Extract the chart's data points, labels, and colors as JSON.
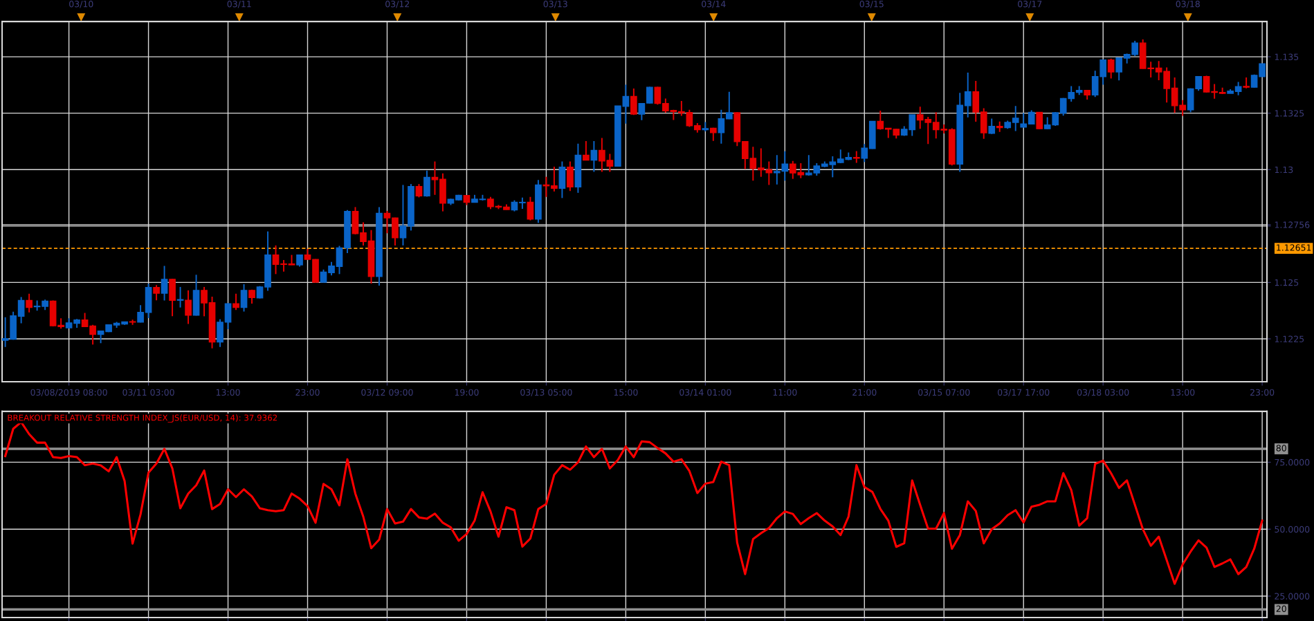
{
  "chart_data": [
    {
      "type": "candlestick",
      "categories": [
        null,
        null,
        null,
        null,
        null,
        null,
        null,
        null,
        "03/08/2019 08:00",
        null,
        null,
        null,
        null,
        null,
        null,
        null,
        null,
        null,
        "03/11 03:00",
        null,
        null,
        null,
        null,
        null,
        null,
        null,
        null,
        null,
        "13:00",
        null,
        null,
        null,
        null,
        null,
        null,
        null,
        null,
        null,
        "23:00",
        null,
        null,
        null,
        null,
        null,
        null,
        null,
        null,
        null,
        "03/12 09:00",
        null,
        null,
        null,
        null,
        null,
        null,
        null,
        null,
        null,
        "19:00",
        null,
        null,
        null,
        null,
        null,
        null,
        null,
        null,
        null,
        "03/13 05:00",
        null,
        null,
        null,
        null,
        null,
        null,
        null,
        null,
        null,
        "15:00",
        null,
        null,
        null,
        null,
        null,
        null,
        null,
        null,
        null,
        "03/14 01:00",
        null,
        null,
        null,
        null,
        null,
        null,
        null,
        null,
        null,
        "11:00",
        null,
        null,
        null,
        null,
        null,
        null,
        null,
        null,
        null,
        "21:00",
        null,
        null,
        null,
        null,
        null,
        null,
        null,
        null,
        null,
        "03/15 07:00",
        null,
        null,
        null,
        null,
        null,
        null,
        null,
        null,
        null,
        "03/17 17:00",
        null,
        null,
        null,
        null,
        null,
        null,
        null,
        null,
        null,
        "03/18 03:00",
        null,
        null,
        null,
        null,
        null,
        null,
        null,
        null,
        null,
        "13:00",
        null,
        null,
        null,
        null,
        null,
        null,
        null,
        null,
        null,
        "23:00"
      ],
      "ohlc": [
        [
          1.12244,
          1.12346,
          1.12214,
          1.12251
        ],
        [
          1.12248,
          1.1237,
          1.12246,
          1.12352
        ],
        [
          1.1235,
          1.12435,
          1.12319,
          1.1242
        ],
        [
          1.1242,
          1.1245,
          1.12367,
          1.12389
        ],
        [
          1.12392,
          1.1242,
          1.12375,
          1.12395
        ],
        [
          1.12394,
          1.12424,
          1.12378,
          1.12417
        ],
        [
          1.12417,
          1.1242,
          1.12305,
          1.12308
        ],
        [
          1.1231,
          1.12341,
          1.12295,
          1.12304
        ],
        [
          1.12299,
          1.12341,
          1.12296,
          1.12321
        ],
        [
          1.12319,
          1.12338,
          1.12299,
          1.12334
        ],
        [
          1.12334,
          1.12365,
          1.12303,
          1.12304
        ],
        [
          1.12307,
          1.12312,
          1.12225,
          1.1227
        ],
        [
          1.1227,
          1.12287,
          1.12231,
          1.12285
        ],
        [
          1.12282,
          1.12314,
          1.1228,
          1.12312
        ],
        [
          1.12311,
          1.12325,
          1.12299,
          1.12319
        ],
        [
          1.12316,
          1.12326,
          1.12312,
          1.12325
        ],
        [
          1.12326,
          1.12335,
          1.12312,
          1.12324
        ],
        [
          1.12324,
          1.12399,
          1.12323,
          1.12367
        ],
        [
          1.12367,
          1.12494,
          1.12342,
          1.12478
        ],
        [
          1.12478,
          1.12488,
          1.12421,
          1.12452
        ],
        [
          1.12452,
          1.12573,
          1.1242,
          1.12514
        ],
        [
          1.12514,
          1.12516,
          1.1235,
          1.12421
        ],
        [
          1.12421,
          1.1248,
          1.12389,
          1.12424
        ],
        [
          1.12421,
          1.12465,
          1.12316,
          1.12355
        ],
        [
          1.12355,
          1.12534,
          1.12353,
          1.12465
        ],
        [
          1.12465,
          1.1248,
          1.1235,
          1.12409
        ],
        [
          1.1241,
          1.12437,
          1.12208,
          1.12236
        ],
        [
          1.12236,
          1.12337,
          1.12214,
          1.12324
        ],
        [
          1.12324,
          1.12408,
          1.12293,
          1.12406
        ],
        [
          1.12406,
          1.1245,
          1.12378,
          1.12389
        ],
        [
          1.12389,
          1.12492,
          1.12371,
          1.12465
        ],
        [
          1.12465,
          1.12468,
          1.12406,
          1.12433
        ],
        [
          1.12431,
          1.12484,
          1.12429,
          1.1248
        ],
        [
          1.1248,
          1.12726,
          1.12463,
          1.12622
        ],
        [
          1.12622,
          1.12664,
          1.12537,
          1.1258
        ],
        [
          1.12582,
          1.12599,
          1.12548,
          1.1258
        ],
        [
          1.12582,
          1.12622,
          1.12577,
          1.12578
        ],
        [
          1.12578,
          1.12624,
          1.1257,
          1.12622
        ],
        [
          1.12622,
          1.12648,
          1.12601,
          1.12602
        ],
        [
          1.12602,
          1.12603,
          1.125,
          1.12501
        ],
        [
          1.12501,
          1.12557,
          1.125,
          1.12546
        ],
        [
          1.12543,
          1.12591,
          1.12531,
          1.12573
        ],
        [
          1.12571,
          1.12662,
          1.12537,
          1.12653
        ],
        [
          1.12653,
          1.12821,
          1.1263,
          1.12815
        ],
        [
          1.12815,
          1.12834,
          1.12713,
          1.12716
        ],
        [
          1.1272,
          1.12766,
          1.12664,
          1.12681
        ],
        [
          1.12684,
          1.12732,
          1.12495,
          1.12526
        ],
        [
          1.12526,
          1.12834,
          1.12486,
          1.12806
        ],
        [
          1.12806,
          1.12817,
          1.12718,
          1.12786
        ],
        [
          1.12786,
          1.12787,
          1.12664,
          1.12698
        ],
        [
          1.12698,
          1.12932,
          1.12664,
          1.1275
        ],
        [
          1.1275,
          1.12936,
          1.1273,
          1.12925
        ],
        [
          1.12925,
          1.12936,
          1.12877,
          1.12883
        ],
        [
          1.12883,
          1.12995,
          1.1288,
          1.12966
        ],
        [
          1.12966,
          1.13036,
          1.12888,
          1.12955
        ],
        [
          1.12957,
          1.12983,
          1.12815,
          1.12851
        ],
        [
          1.12851,
          1.12871,
          1.12843,
          1.12868
        ],
        [
          1.12866,
          1.12888,
          1.12863,
          1.12886
        ],
        [
          1.12885,
          1.12886,
          1.12843,
          1.12855
        ],
        [
          1.12855,
          1.12888,
          1.12854,
          1.12869
        ],
        [
          1.12867,
          1.12888,
          1.12863,
          1.12869
        ],
        [
          1.12869,
          1.12879,
          1.12825,
          1.12836
        ],
        [
          1.12837,
          1.12843,
          1.12825,
          1.12834
        ],
        [
          1.12834,
          1.12846,
          1.12822,
          1.12823
        ],
        [
          1.12821,
          1.12864,
          1.12815,
          1.12855
        ],
        [
          1.12853,
          1.12876,
          1.12826,
          1.12855
        ],
        [
          1.12855,
          1.12879,
          1.12775,
          1.12781
        ],
        [
          1.12781,
          1.12954,
          1.12764,
          1.12932
        ],
        [
          1.12932,
          1.12968,
          1.12879,
          1.12928
        ],
        [
          1.12928,
          1.13013,
          1.12903,
          1.12917
        ],
        [
          1.12917,
          1.13036,
          1.12874,
          1.13011
        ],
        [
          1.13011,
          1.13036,
          1.12905,
          1.12923
        ],
        [
          1.12923,
          1.13115,
          1.12897,
          1.13064
        ],
        [
          1.13064,
          1.13126,
          1.13041,
          1.13042
        ],
        [
          1.13042,
          1.13126,
          1.1299,
          1.13085
        ],
        [
          1.13085,
          1.1314,
          1.1299,
          1.13038
        ],
        [
          1.13041,
          1.1307,
          1.1299,
          1.13015
        ],
        [
          1.13015,
          1.13282,
          1.13013,
          1.13282
        ],
        [
          1.1328,
          1.13376,
          1.13204,
          1.13324
        ],
        [
          1.13324,
          1.13359,
          1.13242,
          1.13246
        ],
        [
          1.13246,
          1.13295,
          1.13219,
          1.13293
        ],
        [
          1.13295,
          1.13367,
          1.13293,
          1.13365
        ],
        [
          1.13365,
          1.13367,
          1.13288,
          1.13293
        ],
        [
          1.13293,
          1.13315,
          1.13252,
          1.1326
        ],
        [
          1.13262,
          1.13265,
          1.1322,
          1.13257
        ],
        [
          1.13257,
          1.13304,
          1.13238,
          1.13252
        ],
        [
          1.13253,
          1.13265,
          1.13189,
          1.13194
        ],
        [
          1.13195,
          1.13206,
          1.13164,
          1.13177
        ],
        [
          1.13177,
          1.13211,
          1.13169,
          1.13182
        ],
        [
          1.13183,
          1.13185,
          1.13127,
          1.13164
        ],
        [
          1.13164,
          1.13265,
          1.13115,
          1.13225
        ],
        [
          1.13225,
          1.13345,
          1.13224,
          1.13252
        ],
        [
          1.13252,
          1.13254,
          1.13104,
          1.13124
        ],
        [
          1.13124,
          1.13126,
          1.13002,
          1.13049
        ],
        [
          1.1305,
          1.13101,
          1.12951,
          1.13005
        ],
        [
          1.13007,
          1.13094,
          1.12968,
          1.12999
        ],
        [
          1.12999,
          1.13036,
          1.12932,
          1.12986
        ],
        [
          1.12986,
          1.13064,
          1.12934,
          1.12992
        ],
        [
          1.12993,
          1.13081,
          1.12951,
          1.13025
        ],
        [
          1.13025,
          1.13038,
          1.12959,
          1.12985
        ],
        [
          1.12987,
          1.13028,
          1.12962,
          1.12977
        ],
        [
          1.12977,
          1.13064,
          1.12973,
          1.12985
        ],
        [
          1.12985,
          1.13028,
          1.12973,
          1.13016
        ],
        [
          1.13014,
          1.13036,
          1.13011,
          1.13025
        ],
        [
          1.13022,
          1.13059,
          1.12966,
          1.13034
        ],
        [
          1.13031,
          1.13089,
          1.13028,
          1.13047
        ],
        [
          1.13045,
          1.13076,
          1.13042,
          1.13054
        ],
        [
          1.13054,
          1.13082,
          1.1303,
          1.1305
        ],
        [
          1.1305,
          1.13113,
          1.13034,
          1.13095
        ],
        [
          1.13093,
          1.13214,
          1.13092,
          1.13214
        ],
        [
          1.13214,
          1.13261,
          1.13177,
          1.13181
        ],
        [
          1.13183,
          1.13183,
          1.1314,
          1.13179
        ],
        [
          1.13179,
          1.1318,
          1.13138,
          1.13153
        ],
        [
          1.13153,
          1.13192,
          1.13149,
          1.13179
        ],
        [
          1.13177,
          1.13243,
          1.13149,
          1.13243
        ],
        [
          1.13243,
          1.13279,
          1.13181,
          1.1322
        ],
        [
          1.13222,
          1.13234,
          1.13113,
          1.13209
        ],
        [
          1.13209,
          1.13254,
          1.13138,
          1.13177
        ],
        [
          1.13179,
          1.132,
          1.1316,
          1.13175
        ],
        [
          1.13177,
          1.13183,
          1.13018,
          1.13024
        ],
        [
          1.13024,
          1.1334,
          1.1299,
          1.13285
        ],
        [
          1.13283,
          1.1343,
          1.13231,
          1.13345
        ],
        [
          1.13345,
          1.13393,
          1.13212,
          1.13255
        ],
        [
          1.13255,
          1.13272,
          1.13136,
          1.13163
        ],
        [
          1.13161,
          1.13226,
          1.13158,
          1.13192
        ],
        [
          1.13192,
          1.13213,
          1.13167,
          1.13186
        ],
        [
          1.13186,
          1.13217,
          1.13181,
          1.13209
        ],
        [
          1.13209,
          1.13282,
          1.13171,
          1.13228
        ],
        [
          1.13188,
          1.13251,
          1.13186,
          1.13202
        ],
        [
          1.13202,
          1.13263,
          1.132,
          1.13254
        ],
        [
          1.13254,
          1.13255,
          1.1318,
          1.13181
        ],
        [
          1.13181,
          1.13232,
          1.1318,
          1.13198
        ],
        [
          1.13198,
          1.13255,
          1.13194,
          1.13252
        ],
        [
          1.1325,
          1.13317,
          1.13239,
          1.13315
        ],
        [
          1.13315,
          1.1337,
          1.13301,
          1.13342
        ],
        [
          1.13342,
          1.1337,
          1.13331,
          1.13351
        ],
        [
          1.13351,
          1.13353,
          1.1331,
          1.13331
        ],
        [
          1.13331,
          1.13438,
          1.13322,
          1.13412
        ],
        [
          1.13412,
          1.13487,
          1.13376,
          1.13486
        ],
        [
          1.13486,
          1.13492,
          1.13404,
          1.13433
        ],
        [
          1.13433,
          1.13496,
          1.13395,
          1.13495
        ],
        [
          1.13494,
          1.13514,
          1.1347,
          1.1351
        ],
        [
          1.1351,
          1.13571,
          1.13503,
          1.13561
        ],
        [
          1.13561,
          1.13577,
          1.13447,
          1.13448
        ],
        [
          1.1345,
          1.13478,
          1.13408,
          1.13447
        ],
        [
          1.1345,
          1.13481,
          1.13396,
          1.13433
        ],
        [
          1.13435,
          1.13453,
          1.13297,
          1.13359
        ],
        [
          1.13361,
          1.13408,
          1.13251,
          1.13283
        ],
        [
          1.13285,
          1.13308,
          1.13238,
          1.13265
        ],
        [
          1.13265,
          1.1336,
          1.13254,
          1.13358
        ],
        [
          1.13358,
          1.13413,
          1.13349,
          1.13412
        ],
        [
          1.13412,
          1.13416,
          1.13342,
          1.13344
        ],
        [
          1.13346,
          1.13379,
          1.13314,
          1.13342
        ],
        [
          1.13342,
          1.13363,
          1.13335,
          1.13338
        ],
        [
          1.13338,
          1.13356,
          1.13338,
          1.13348
        ],
        [
          1.13346,
          1.13388,
          1.13329,
          1.13368
        ],
        [
          1.13369,
          1.13408,
          1.1336,
          1.13365
        ],
        [
          1.13365,
          1.13421,
          1.13364,
          1.13418
        ],
        [
          1.13412,
          1.13469,
          1.13412,
          1.13469
        ]
      ],
      "colors": [
        "#0a64c8",
        "#0a64c8",
        "#0a64c8",
        "#e60000",
        "#0a64c8",
        "#0a64c8",
        "#e60000",
        "#e60000",
        "#0a64c8",
        "#0a64c8",
        "#e60000",
        "#e60000",
        "#0a64c8",
        "#0a64c8",
        "#0a64c8",
        "#0a64c8",
        "#e60000",
        "#0a64c8",
        "#0a64c8",
        "#e60000",
        "#0a64c8",
        "#e60000",
        "#0a64c8",
        "#e60000",
        "#0a64c8",
        "#e60000",
        "#e60000",
        "#0a64c8",
        "#0a64c8",
        "#e60000",
        "#0a64c8",
        "#e60000",
        "#0a64c8",
        "#0a64c8",
        "#e60000",
        "#e60000",
        "#e60000",
        "#0a64c8",
        "#e60000",
        "#e60000",
        "#0a64c8",
        "#0a64c8",
        "#0a64c8",
        "#0a64c8",
        "#e60000",
        "#e60000",
        "#e60000",
        "#0a64c8",
        "#e60000",
        "#e60000",
        "#0a64c8",
        "#0a64c8",
        "#e60000",
        "#0a64c8",
        "#e60000",
        "#e60000",
        "#0a64c8",
        "#0a64c8",
        "#e60000",
        "#0a64c8",
        "#0a64c8",
        "#e60000",
        "#e60000",
        "#e60000",
        "#0a64c8",
        "#0a64c8",
        "#e60000",
        "#0a64c8",
        "#e60000",
        "#e60000",
        "#0a64c8",
        "#e60000",
        "#0a64c8",
        "#e60000",
        "#0a64c8",
        "#e60000",
        "#e60000",
        "#0a64c8",
        "#0a64c8",
        "#e60000",
        "#0a64c8",
        "#0a64c8",
        "#e60000",
        "#e60000",
        "#e60000",
        "#e60000",
        "#e60000",
        "#e60000",
        "#0a64c8",
        "#e60000",
        "#0a64c8",
        "#0a64c8",
        "#e60000",
        "#e60000",
        "#e60000",
        "#e60000",
        "#e60000",
        "#0a64c8",
        "#0a64c8",
        "#e60000",
        "#e60000",
        "#0a64c8",
        "#0a64c8",
        "#0a64c8",
        "#0a64c8",
        "#0a64c8",
        "#0a64c8",
        "#e60000",
        "#0a64c8",
        "#0a64c8",
        "#e60000",
        "#e60000",
        "#e60000",
        "#0a64c8",
        "#0a64c8",
        "#e60000",
        "#e60000",
        "#e60000",
        "#e60000",
        "#e60000",
        "#0a64c8",
        "#0a64c8",
        "#e60000",
        "#e60000",
        "#0a64c8",
        "#e60000",
        "#0a64c8",
        "#0a64c8",
        "#0a64c8",
        "#0a64c8",
        "#e60000",
        "#0a64c8",
        "#0a64c8",
        "#0a64c8",
        "#0a64c8",
        "#0a64c8",
        "#e60000",
        "#0a64c8",
        "#0a64c8",
        "#e60000",
        "#0a64c8",
        "#0a64c8",
        "#0a64c8",
        "#e60000",
        "#e60000",
        "#e60000",
        "#e60000",
        "#e60000",
        "#e60000",
        "#0a64c8",
        "#0a64c8",
        "#e60000",
        "#e60000",
        "#e60000",
        "#0a64c8",
        "#0a64c8",
        "#e60000",
        "#0a64c8",
        "#0a64c8"
      ],
      "ylim": [
        1.1206,
        1.13656
      ],
      "yticks": [
        1.1225,
        1.125,
        {
          "value": 1.1275,
          "label": null
        },
        {
          "value": 1.12756,
          "label": "1.12756"
        },
        1.13,
        1.1325,
        1.135
      ],
      "ref_lines": [
        {
          "axis": "y",
          "value": 1.12651,
          "label": "1.12651",
          "color": "#ff9900",
          "line_style": "dashed"
        }
      ],
      "annotations": [
        "03/10",
        "03/11",
        "03/12",
        "03/13",
        "03/14",
        "03/15",
        "03/17",
        "03/18"
      ],
      "grid": true
    },
    {
      "type": "line",
      "title": "BREAKOUT RELATIVE STRENGTH INDEX_JS(EUR/USD, 14): 37.9362",
      "categories": [
        null,
        null,
        null,
        null,
        null,
        null,
        null,
        null,
        null,
        null,
        null,
        null,
        null,
        null,
        null,
        null,
        null,
        null,
        null,
        null,
        null,
        null,
        null,
        null,
        null,
        null,
        null,
        null,
        null,
        null,
        null,
        null,
        null,
        null,
        null,
        null,
        null,
        null,
        null,
        null,
        null,
        null,
        null,
        null,
        null,
        null,
        null,
        null,
        null,
        null,
        null,
        null,
        null,
        null,
        null,
        null,
        null,
        null,
        null,
        null,
        null,
        null,
        null,
        null,
        null,
        null,
        null,
        null,
        null,
        null,
        null,
        null,
        null,
        null,
        null,
        null,
        null,
        null,
        null,
        null,
        null,
        null,
        null,
        null,
        null,
        null,
        null,
        null,
        null,
        null,
        null,
        null,
        null,
        null,
        null,
        null,
        null,
        null,
        null,
        null,
        null,
        null,
        null,
        null,
        null,
        null,
        null,
        null,
        null,
        null,
        null,
        null,
        null,
        null,
        null,
        null,
        null,
        null,
        null,
        null,
        null,
        null,
        null,
        null,
        null,
        null,
        null,
        null,
        null,
        null,
        null,
        null,
        null,
        null,
        null,
        null,
        null,
        null,
        null,
        null,
        null,
        null,
        null,
        null,
        null,
        null,
        null,
        null,
        null,
        null,
        null,
        null,
        null,
        null,
        null,
        null,
        null,
        null,
        null
      ],
      "series": [
        {
          "color": "#ff0000",
          "values": [
            77.3,
            87.5,
            90,
            85.5,
            82.3,
            82.3,
            76.9,
            76.6,
            77.3,
            76.9,
            73.9,
            74.5,
            73.8,
            71.6,
            76.9,
            68,
            44.6,
            55.5,
            71.1,
            74.5,
            80,
            72.7,
            57.8,
            63.3,
            66.4,
            71.9,
            57.5,
            59.4,
            64.9,
            62,
            64.9,
            62.2,
            57.8,
            57.1,
            56.7,
            57.1,
            63.3,
            61.4,
            58.6,
            52.4,
            66.9,
            64.9,
            58.9,
            76.1,
            63.3,
            54.7,
            42.9,
            46.1,
            57.5,
            52.1,
            52.8,
            57.5,
            54.4,
            53.9,
            55.8,
            52.4,
            50.7,
            45.7,
            48.2,
            53.2,
            63.8,
            56.6,
            47.2,
            58.2,
            57.1,
            43.5,
            46.5,
            57.5,
            59.4,
            70.3,
            73.9,
            72.2,
            75,
            80.9,
            76.9,
            80,
            72.7,
            75.8,
            80.9,
            76.9,
            82.8,
            82.5,
            80.3,
            78.3,
            75.2,
            76.1,
            71.7,
            63.5,
            67,
            67.6,
            75.2,
            73.9,
            45,
            33.2,
            46.3,
            48.5,
            50.4,
            54.1,
            56.6,
            55.7,
            51.9,
            54.1,
            56,
            53.2,
            51,
            47.8,
            54.7,
            73.9,
            65.7,
            63.9,
            57.6,
            53.2,
            43.4,
            44.7,
            68.2,
            59.1,
            50.2,
            50.2,
            56,
            42.7,
            47.8,
            60.4,
            56.8,
            44.7,
            50,
            52.1,
            55.2,
            57.1,
            52.5,
            58.4,
            59.1,
            60.4,
            60.4,
            70.9,
            64.6,
            51.3,
            54.1,
            74.4,
            75.6,
            70.9,
            65.4,
            68.2,
            59.1,
            50,
            43.8,
            47.2,
            38.4,
            29.6,
            36.8,
            41.6,
            45.8,
            43.1,
            35.9,
            37.2,
            38.7,
            33.2,
            35.9,
            42.7,
            53.2
          ]
        }
      ],
      "ylim": [
        17,
        94
      ],
      "yticks": [
        {
          "value": 25,
          "label": "25.0000"
        },
        {
          "value": 50,
          "label": "50.0000"
        },
        {
          "value": 75,
          "label": "75.0000"
        }
      ],
      "ref_lines": [
        {
          "axis": "y",
          "value": 80,
          "label": "80",
          "color": "#909090",
          "line_style": "solid"
        },
        {
          "axis": "y",
          "value": 20,
          "label": "20",
          "color": "#909090",
          "line_style": "solid"
        }
      ],
      "tick_labels": "y",
      "grid": true,
      "line_style": "solid",
      "marker": "none"
    }
  ]
}
